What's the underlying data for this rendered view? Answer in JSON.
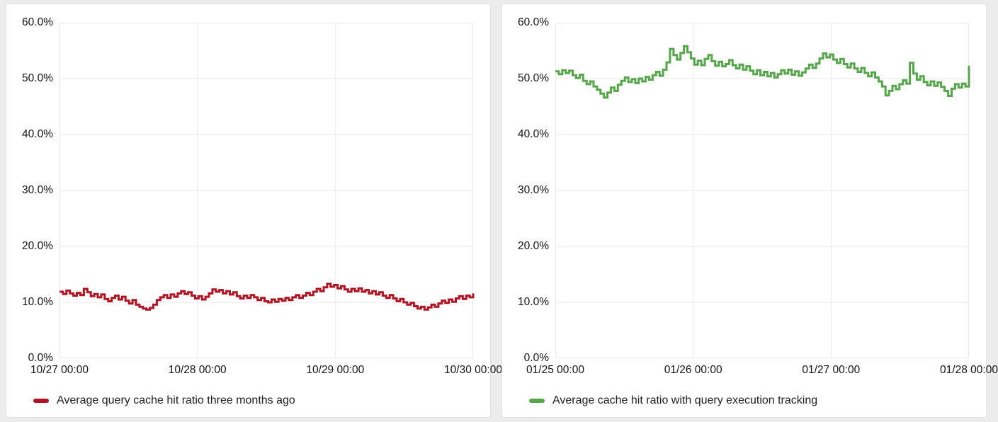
{
  "page": {
    "background_color": "#ececec",
    "panel_background": "#ffffff",
    "grid_color": "#e9e9e9",
    "axis_text_color": "#141414"
  },
  "chart_data": [
    {
      "type": "line",
      "line_interpolation": "step-after",
      "grid": true,
      "legend_position": "bottom-left",
      "ylim": [
        0,
        60
      ],
      "y_ticks_top_to_bottom": [
        "60.0%",
        "50.0%",
        "40.0%",
        "30.0%",
        "20.0%",
        "10.0%",
        "0.0%"
      ],
      "x_ticks": [
        "10/27 00:00",
        "10/28 00:00",
        "10/29 00:00",
        "10/30 00:00"
      ],
      "x_range": "10/27 00:00 to 10/30 00:00, points evenly spaced",
      "series": [
        {
          "name": "Average query cache hit ratio three months ago",
          "color": "#b01422",
          "unit": "%",
          "values": [
            11.9,
            11.5,
            12.1,
            11.6,
            11.2,
            11.7,
            11.3,
            12.4,
            11.8,
            11.1,
            11.5,
            10.9,
            11.4,
            10.6,
            10.2,
            10.8,
            11.2,
            10.5,
            11.0,
            10.3,
            9.8,
            10.4,
            9.6,
            9.2,
            8.9,
            8.7,
            9.0,
            9.6,
            10.4,
            10.9,
            11.3,
            10.8,
            11.4,
            11.0,
            11.6,
            12.0,
            11.5,
            11.8,
            11.2,
            10.7,
            11.1,
            10.5,
            11.0,
            11.6,
            12.3,
            11.9,
            12.2,
            11.6,
            12.0,
            11.4,
            11.8,
            11.1,
            10.7,
            11.2,
            10.8,
            11.3,
            10.9,
            10.4,
            10.8,
            10.2,
            10.0,
            10.5,
            10.1,
            10.6,
            10.3,
            10.8,
            10.4,
            10.9,
            11.3,
            10.8,
            11.2,
            11.7,
            11.3,
            11.9,
            12.4,
            12.0,
            12.7,
            13.3,
            12.8,
            13.1,
            12.5,
            12.9,
            12.3,
            11.9,
            12.4,
            12.0,
            12.5,
            11.9,
            12.2,
            11.6,
            12.0,
            11.4,
            11.8,
            11.2,
            10.8,
            11.3,
            10.7,
            10.2,
            10.6,
            10.0,
            9.6,
            9.9,
            9.3,
            8.9,
            9.2,
            8.7,
            9.1,
            9.6,
            9.2,
            9.8,
            10.3,
            9.9,
            10.5,
            10.1,
            10.7,
            11.1,
            10.6,
            11.2,
            10.9,
            11.6
          ]
        }
      ]
    },
    {
      "type": "line",
      "line_interpolation": "step-after",
      "grid": true,
      "legend_position": "bottom-left",
      "ylim": [
        0,
        60
      ],
      "y_ticks_top_to_bottom": [
        "60.0%",
        "50.0%",
        "40.0%",
        "30.0%",
        "20.0%",
        "10.0%",
        "0.0%"
      ],
      "x_ticks": [
        "01/25 00:00",
        "01/26 00:00",
        "01/27 00:00",
        "01/28 00:00"
      ],
      "x_range": "01/25 00:00 to 01/28 00:00, points evenly spaced",
      "series": [
        {
          "name": "Average cache hit ratio with query execution tracking",
          "color": "#56a64b",
          "unit": "%",
          "values": [
            51.3,
            50.8,
            51.5,
            51.0,
            51.4,
            50.6,
            50.1,
            50.7,
            49.6,
            49.0,
            49.5,
            48.6,
            48.0,
            47.3,
            46.6,
            47.5,
            48.4,
            47.8,
            48.9,
            49.6,
            50.2,
            49.4,
            49.9,
            49.2,
            50.0,
            49.5,
            50.3,
            49.8,
            50.6,
            51.2,
            50.5,
            51.6,
            52.9,
            55.3,
            54.2,
            53.4,
            54.6,
            55.8,
            54.7,
            53.6,
            52.5,
            53.2,
            52.4,
            53.5,
            54.2,
            53.1,
            52.3,
            53.0,
            52.2,
            52.6,
            53.3,
            52.4,
            51.8,
            52.5,
            51.6,
            52.2,
            51.4,
            50.8,
            51.5,
            50.6,
            51.2,
            50.4,
            51.0,
            50.2,
            50.8,
            51.5,
            50.9,
            51.6,
            50.7,
            51.3,
            50.5,
            51.1,
            51.8,
            52.5,
            51.9,
            52.7,
            53.6,
            54.5,
            53.8,
            54.3,
            53.4,
            52.8,
            53.5,
            52.6,
            52.0,
            52.7,
            51.8,
            51.2,
            51.9,
            51.0,
            50.4,
            51.1,
            50.2,
            49.5,
            48.6,
            47.0,
            47.8,
            48.7,
            48.1,
            49.0,
            49.7,
            49.1,
            52.8,
            50.9,
            49.8,
            50.4,
            49.4,
            48.8,
            49.5,
            48.7,
            49.3,
            48.5,
            47.8,
            46.9,
            48.2,
            49.0,
            48.4,
            49.1,
            48.6,
            52.3
          ]
        }
      ]
    }
  ]
}
